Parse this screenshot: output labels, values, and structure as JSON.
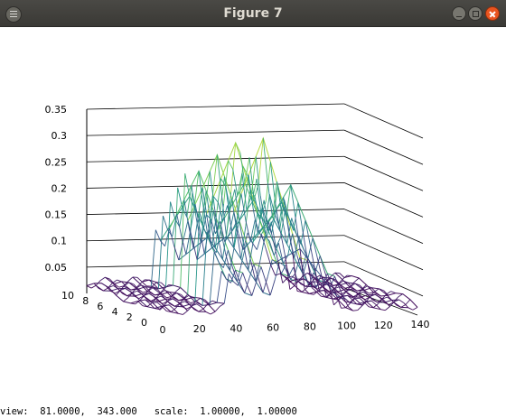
{
  "window": {
    "title": "Figure 7"
  },
  "chart_data": {
    "type": "surface-3d-mesh",
    "title": "",
    "zlim": [
      0,
      0.35
    ],
    "z_ticks": [
      "0.05",
      "0.1",
      "0.15",
      "0.2",
      "0.25",
      "0.3",
      "0.35"
    ],
    "x_ticks": [
      "0",
      "20",
      "40",
      "60",
      "80",
      "100",
      "120",
      "140"
    ],
    "y_ticks": [
      "0",
      "2",
      "4",
      "6",
      "8",
      "10"
    ],
    "colormap": "viridis",
    "ridge_peaks": [
      {
        "x": 38,
        "z": 0.26
      },
      {
        "x": 45,
        "z": 0.25
      },
      {
        "x": 55,
        "z": 0.28
      },
      {
        "x": 66,
        "z": 0.34
      },
      {
        "x": 72,
        "z": 0.29
      },
      {
        "x": 80,
        "z": 0.31
      },
      {
        "x": 88,
        "z": 0.24
      },
      {
        "x": 95,
        "z": 0.22
      }
    ],
    "baseline_z": 0.02
  },
  "status_bar": {
    "view_label": "view:",
    "view_values": "81.0000,  343.000",
    "scale_label": "scale:",
    "scale_values": "1.00000,  1.00000"
  },
  "colors": {
    "low": "#440154",
    "mid": "#21918c",
    "high": "#fde725",
    "titlebar": "#3c3b37",
    "close": "#e9541f"
  }
}
